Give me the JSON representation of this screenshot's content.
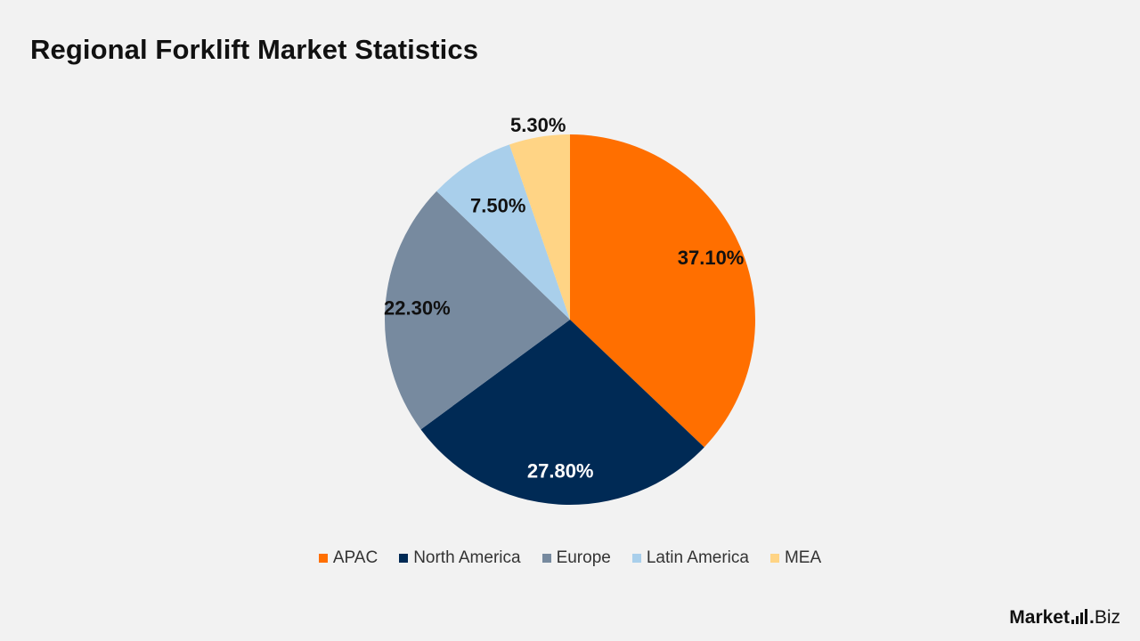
{
  "page": {
    "title": "Regional Forklift Market Statistics"
  },
  "chart_data": {
    "type": "pie",
    "title": "Regional Forklift Market Statistics",
    "categories": [
      "APAC",
      "North America",
      "Europe",
      "Latin America",
      "MEA"
    ],
    "values": [
      37.1,
      27.8,
      22.3,
      7.5,
      5.3
    ],
    "labels": [
      "37.10%",
      "27.80%",
      "22.30%",
      "7.50%",
      "5.30%"
    ],
    "colors": [
      "#ff6f00",
      "#002a55",
      "#778a9f",
      "#a9cfeb",
      "#ffd485"
    ],
    "label_colors": [
      "#111111",
      "#ffffff",
      "#111111",
      "#111111",
      "#111111"
    ],
    "start_angle_deg": 0,
    "direction": "clockwise",
    "legend_position": "bottom"
  },
  "legend": {
    "items": [
      {
        "label": "APAC",
        "color": "#ff6f00"
      },
      {
        "label": "North America",
        "color": "#002a55"
      },
      {
        "label": "Europe",
        "color": "#778a9f"
      },
      {
        "label": "Latin America",
        "color": "#a9cfeb"
      },
      {
        "label": "MEA",
        "color": "#ffd485"
      }
    ]
  },
  "brand": {
    "name": "Market",
    "dot": ".",
    "suffix": "Biz"
  }
}
